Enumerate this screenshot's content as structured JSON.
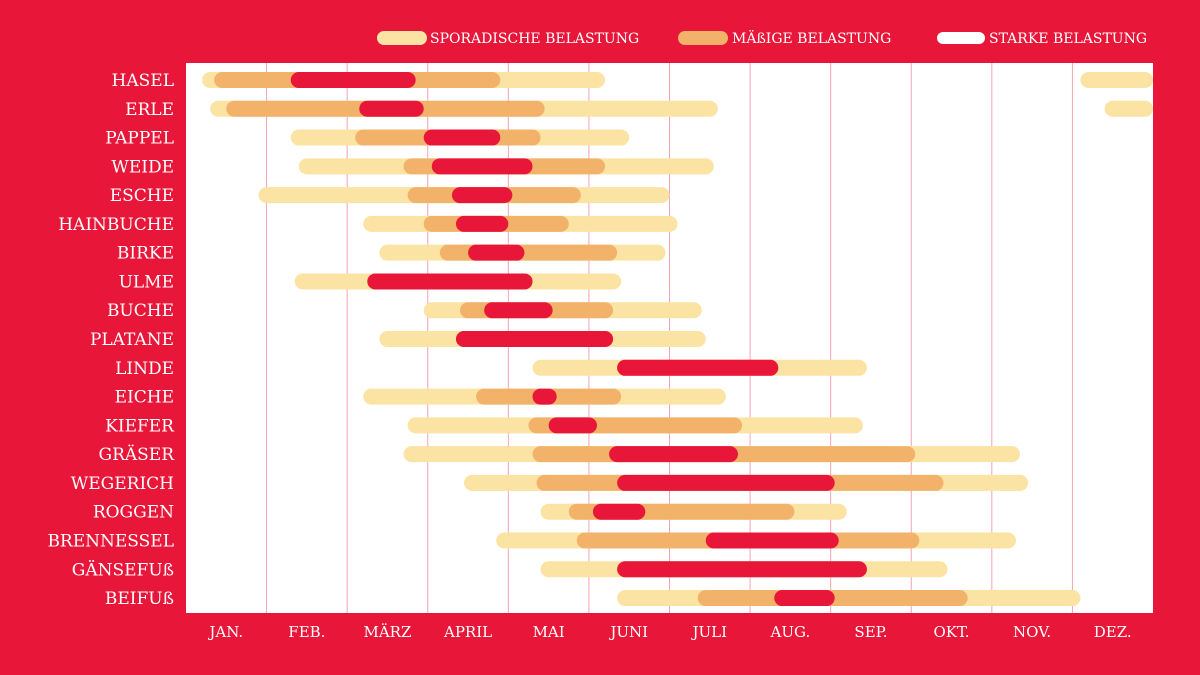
{
  "colors": {
    "background": "#e8173a",
    "plot_bg": "#ffffff",
    "month_line": "#f4a3b0",
    "sporadic": "#fbe3a4",
    "moderate": "#f2b26a",
    "strong": "#e8173a"
  },
  "legend": {
    "sporadic_label": "SPORADISCHE BELASTUNG",
    "moderate_label": "MÄßIGE BELASTUNG",
    "strong_label": "STARKE BELASTUNG"
  },
  "chart_data": {
    "type": "bar",
    "subtype": "gantt",
    "xlabel": "",
    "ylabel": "",
    "months": [
      "JAN.",
      "FEB.",
      "MÄRZ",
      "APRIL",
      "MAI",
      "JUNI",
      "JULI",
      "AUG.",
      "SEP.",
      "OKT.",
      "NOV.",
      "DEZ."
    ],
    "x_unit": "month (0 = start of January, 12 = end of December)",
    "xlim": [
      0,
      12
    ],
    "legend_position": "top-right",
    "grid": "vertical month lines",
    "series": [
      {
        "name": "SPORADISCHE BELASTUNG",
        "level": "sporadic"
      },
      {
        "name": "MÄßIGE BELASTUNG",
        "level": "moderate"
      },
      {
        "name": "STARKE BELASTUNG",
        "level": "strong"
      }
    ],
    "plants": [
      {
        "name": "HASEL",
        "sporadic": [
          [
            0.2,
            5.2
          ],
          [
            11.1,
            12
          ]
        ],
        "moderate": [
          [
            0.35,
            3.9
          ]
        ],
        "strong": [
          [
            1.3,
            2.85
          ]
        ]
      },
      {
        "name": "ERLE",
        "sporadic": [
          [
            0.3,
            6.6
          ],
          [
            11.4,
            12
          ]
        ],
        "moderate": [
          [
            0.5,
            4.45
          ]
        ],
        "strong": [
          [
            2.15,
            2.95
          ]
        ]
      },
      {
        "name": "PAPPEL",
        "sporadic": [
          [
            1.3,
            5.5
          ]
        ],
        "moderate": [
          [
            2.1,
            4.4
          ]
        ],
        "strong": [
          [
            2.95,
            3.9
          ]
        ]
      },
      {
        "name": "WEIDE",
        "sporadic": [
          [
            1.4,
            6.55
          ]
        ],
        "moderate": [
          [
            2.7,
            5.2
          ]
        ],
        "strong": [
          [
            3.05,
            4.3
          ]
        ]
      },
      {
        "name": "ESCHE",
        "sporadic": [
          [
            0.9,
            6.0
          ]
        ],
        "moderate": [
          [
            2.75,
            4.9
          ]
        ],
        "strong": [
          [
            3.3,
            4.05
          ]
        ]
      },
      {
        "name": "HAINBUCHE",
        "sporadic": [
          [
            2.2,
            6.1
          ]
        ],
        "moderate": [
          [
            2.95,
            4.75
          ]
        ],
        "strong": [
          [
            3.35,
            4.0
          ]
        ]
      },
      {
        "name": "BIRKE",
        "sporadic": [
          [
            2.4,
            5.95
          ]
        ],
        "moderate": [
          [
            3.15,
            5.35
          ]
        ],
        "strong": [
          [
            3.5,
            4.2
          ]
        ]
      },
      {
        "name": "ULME",
        "sporadic": [
          [
            1.35,
            5.4
          ]
        ],
        "moderate": [
          [
            2.25,
            4.3
          ]
        ],
        "strong": [
          [
            2.25,
            4.3
          ]
        ]
      },
      {
        "name": "BUCHE",
        "sporadic": [
          [
            2.95,
            6.4
          ]
        ],
        "moderate": [
          [
            3.4,
            5.3
          ]
        ],
        "strong": [
          [
            3.7,
            4.55
          ]
        ]
      },
      {
        "name": "PLATANE",
        "sporadic": [
          [
            2.4,
            6.45
          ]
        ],
        "moderate": [
          [
            3.35,
            5.3
          ]
        ],
        "strong": [
          [
            3.35,
            5.3
          ]
        ]
      },
      {
        "name": "LINDE",
        "sporadic": [
          [
            4.3,
            8.45
          ]
        ],
        "moderate": [
          [
            5.35,
            7.35
          ]
        ],
        "strong": [
          [
            5.35,
            7.35
          ]
        ]
      },
      {
        "name": "EICHE",
        "sporadic": [
          [
            2.2,
            6.7
          ]
        ],
        "moderate": [
          [
            3.6,
            5.4
          ]
        ],
        "strong": [
          [
            4.3,
            4.6
          ]
        ]
      },
      {
        "name": "KIEFER",
        "sporadic": [
          [
            2.75,
            8.4
          ]
        ],
        "moderate": [
          [
            4.25,
            6.9
          ]
        ],
        "strong": [
          [
            4.5,
            5.1
          ]
        ]
      },
      {
        "name": "GRÄSER",
        "sporadic": [
          [
            2.7,
            10.35
          ]
        ],
        "moderate": [
          [
            4.3,
            9.05
          ]
        ],
        "strong": [
          [
            5.25,
            6.85
          ]
        ]
      },
      {
        "name": "WEGERICH",
        "sporadic": [
          [
            3.45,
            10.45
          ]
        ],
        "moderate": [
          [
            4.35,
            9.4
          ]
        ],
        "strong": [
          [
            5.35,
            8.05
          ]
        ]
      },
      {
        "name": "ROGGEN",
        "sporadic": [
          [
            4.4,
            8.2
          ]
        ],
        "moderate": [
          [
            4.75,
            7.55
          ]
        ],
        "strong": [
          [
            5.05,
            5.7
          ]
        ]
      },
      {
        "name": "BRENNESSEL",
        "sporadic": [
          [
            3.85,
            10.3
          ]
        ],
        "moderate": [
          [
            4.85,
            9.1
          ]
        ],
        "strong": [
          [
            6.45,
            8.1
          ]
        ]
      },
      {
        "name": "GÄNSEFUß",
        "sporadic": [
          [
            4.4,
            9.45
          ]
        ],
        "moderate": [
          [
            5.35,
            8.45
          ]
        ],
        "strong": [
          [
            5.35,
            8.45
          ]
        ]
      },
      {
        "name": "BEIFUß",
        "sporadic": [
          [
            5.35,
            11.1
          ]
        ],
        "moderate": [
          [
            6.35,
            9.7
          ]
        ],
        "strong": [
          [
            7.3,
            8.05
          ]
        ]
      }
    ]
  }
}
